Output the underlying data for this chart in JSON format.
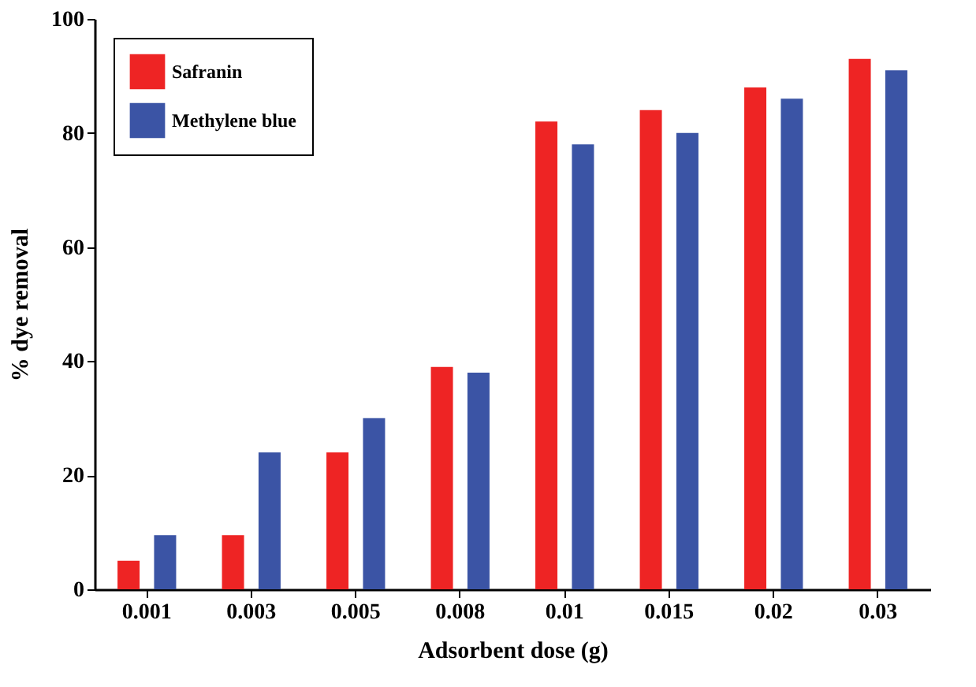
{
  "chart_data": {
    "type": "bar",
    "xlabel": "Adsorbent dose (g)",
    "ylabel": "% dye removal",
    "categories": [
      "0.001",
      "0.003",
      "0.005",
      "0.008",
      "0.01",
      "0.015",
      "0.02",
      "0.03"
    ],
    "series": [
      {
        "name": "Safranin",
        "color": "#ee2424",
        "values": [
          5,
          9.5,
          24,
          39,
          82,
          84,
          88,
          93
        ]
      },
      {
        "name": "Methylene blue",
        "color": "#3b54a5",
        "values": [
          9.5,
          24,
          30,
          38,
          78,
          80,
          86,
          91
        ]
      }
    ],
    "ylim": [
      0,
      100
    ],
    "yticks": [
      0,
      20,
      40,
      60,
      80,
      100
    ],
    "grid": false,
    "legend": "top left"
  }
}
